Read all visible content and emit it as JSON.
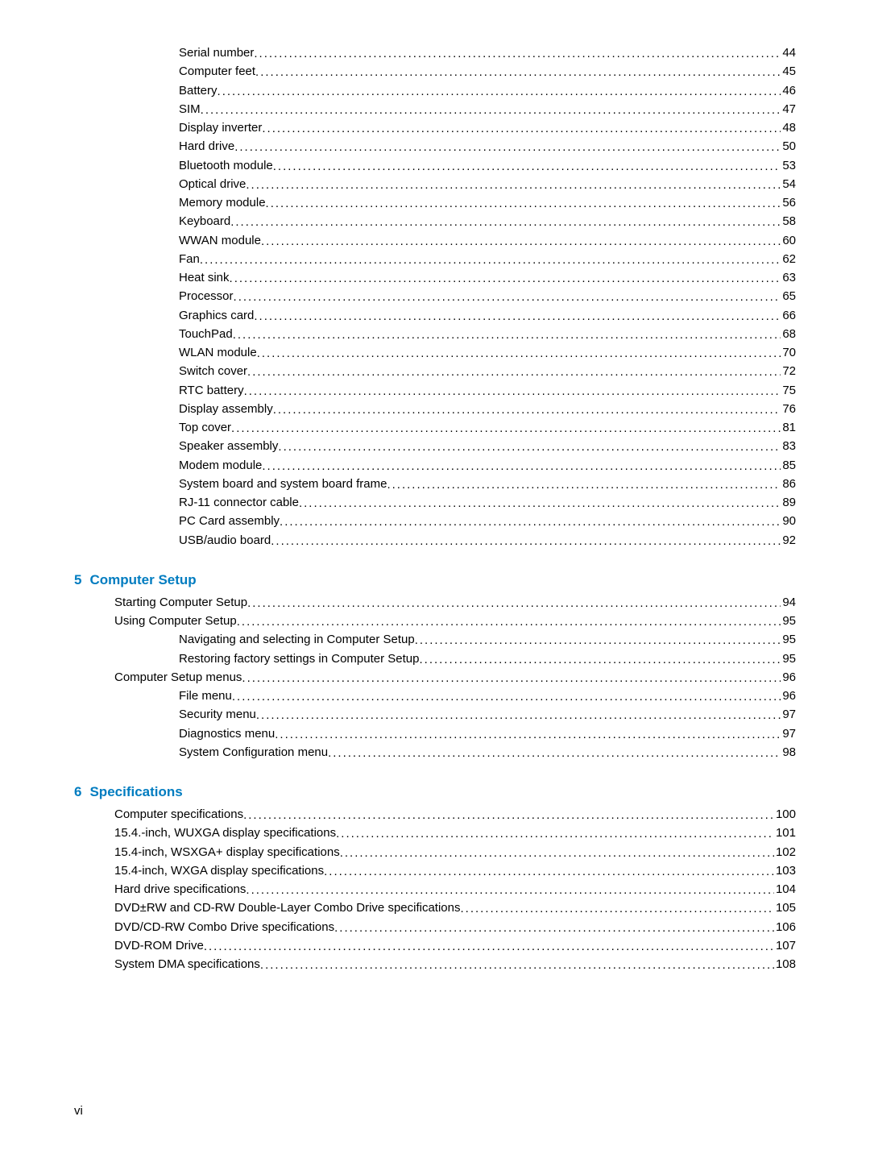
{
  "colors": {
    "heading": "#007cc0",
    "text": "#000000",
    "background": "#ffffff"
  },
  "typography": {
    "font_family": "Arial, Helvetica, sans-serif",
    "body_size_pt": 11,
    "heading_size_pt": 12,
    "heading_weight": "bold"
  },
  "section1": {
    "items": [
      {
        "label": "Serial number",
        "page": "44"
      },
      {
        "label": "Computer feet",
        "page": "45"
      },
      {
        "label": "Battery",
        "page": "46"
      },
      {
        "label": "SIM",
        "page": "47"
      },
      {
        "label": "Display inverter",
        "page": "48"
      },
      {
        "label": "Hard drive",
        "page": "50"
      },
      {
        "label": "Bluetooth module",
        "page": "53"
      },
      {
        "label": "Optical drive",
        "page": "54"
      },
      {
        "label": "Memory module",
        "page": "56"
      },
      {
        "label": "Keyboard",
        "page": "58"
      },
      {
        "label": "WWAN module",
        "page": "60"
      },
      {
        "label": "Fan",
        "page": "62"
      },
      {
        "label": "Heat sink",
        "page": "63"
      },
      {
        "label": "Processor",
        "page": "65"
      },
      {
        "label": "Graphics card",
        "page": "66"
      },
      {
        "label": "TouchPad",
        "page": "68"
      },
      {
        "label": "WLAN module",
        "page": "70"
      },
      {
        "label": "Switch cover",
        "page": "72"
      },
      {
        "label": "RTC battery",
        "page": "75"
      },
      {
        "label": "Display assembly",
        "page": "76"
      },
      {
        "label": "Top cover",
        "page": "81"
      },
      {
        "label": "Speaker assembly",
        "page": "83"
      },
      {
        "label": "Modem module",
        "page": "85"
      },
      {
        "label": "System board and system board frame",
        "page": "86"
      },
      {
        "label": "RJ-11 connector cable",
        "page": "89"
      },
      {
        "label": "PC Card assembly",
        "page": "90"
      },
      {
        "label": "USB/audio board",
        "page": "92"
      }
    ]
  },
  "section2": {
    "number": "5",
    "title": "Computer Setup",
    "items": [
      {
        "label": "Starting Computer Setup",
        "page": "94",
        "indent": 1
      },
      {
        "label": "Using Computer Setup",
        "page": "95",
        "indent": 1
      },
      {
        "label": "Navigating and selecting in Computer Setup",
        "page": "95",
        "indent": 2
      },
      {
        "label": "Restoring factory settings in Computer Setup",
        "page": "95",
        "indent": 2
      },
      {
        "label": "Computer Setup menus",
        "page": "96",
        "indent": 1
      },
      {
        "label": "File menu",
        "page": "96",
        "indent": 2
      },
      {
        "label": "Security menu",
        "page": "97",
        "indent": 2
      },
      {
        "label": "Diagnostics menu",
        "page": "97",
        "indent": 2
      },
      {
        "label": "System Configuration menu",
        "page": "98",
        "indent": 2
      }
    ]
  },
  "section3": {
    "number": "6",
    "title": "Specifications",
    "items": [
      {
        "label": "Computer specifications",
        "page": "100",
        "indent": 1
      },
      {
        "label": "15.4.-inch, WUXGA display specifications",
        "page": "101",
        "indent": 1
      },
      {
        "label": "15.4-inch, WSXGA+ display specifications",
        "page": "102",
        "indent": 1
      },
      {
        "label": "15.4-inch, WXGA display specifications",
        "page": "103",
        "indent": 1
      },
      {
        "label": "Hard drive specifications",
        "page": "104",
        "indent": 1
      },
      {
        "label": "DVD±RW and CD-RW Double-Layer Combo Drive specifications",
        "page": "105",
        "indent": 1
      },
      {
        "label": "DVD/CD-RW Combo Drive specifications",
        "page": "106",
        "indent": 1
      },
      {
        "label": "DVD-ROM Drive",
        "page": "107",
        "indent": 1
      },
      {
        "label": "System DMA specifications",
        "page": "108",
        "indent": 1
      }
    ]
  },
  "footer": {
    "page_label": "vi"
  }
}
